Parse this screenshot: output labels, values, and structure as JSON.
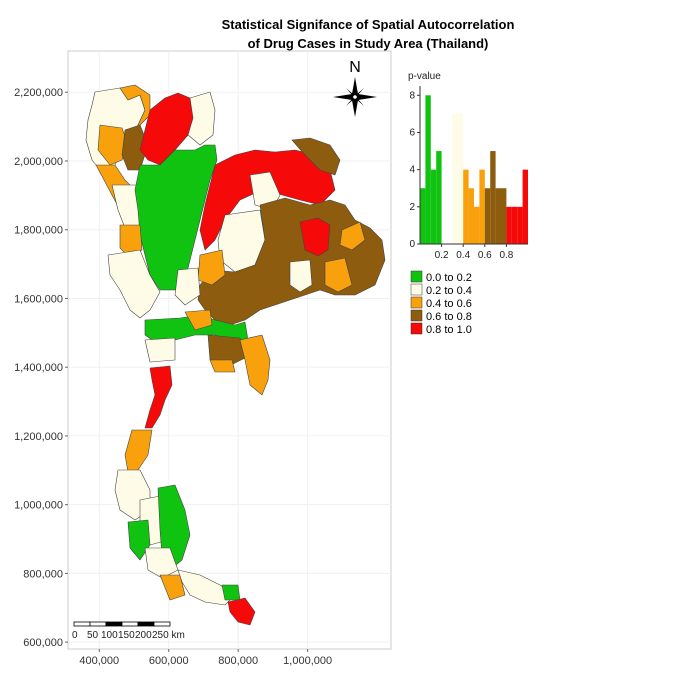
{
  "chart_data": {
    "type": "choropleth-map",
    "title_lines": [
      "Statistical Signifance of Spatial Autocorrelation",
      "of Drug Cases in Study Area (Thailand)"
    ],
    "x_ticks": [
      400000,
      600000,
      800000,
      1000000
    ],
    "x_tick_labels": [
      "400,000",
      "600,000",
      "800,000",
      "1,000,000"
    ],
    "y_ticks": [
      600000,
      800000,
      1000000,
      1200000,
      1400000,
      1600000,
      1800000,
      2000000,
      2200000
    ],
    "y_tick_labels": [
      "600,000",
      "800,000",
      "1,000,000",
      "1,200,000",
      "1,400,000",
      "1,600,000",
      "1,800,000",
      "2,000,000",
      "2,200,000"
    ],
    "xlim": [
      310000,
      1240000
    ],
    "ylim": [
      580000,
      2320000
    ],
    "grid": true,
    "north_arrow_label": "N",
    "scale_bar": {
      "labels": [
        "0",
        "50",
        "100",
        "150",
        "200",
        "250 km"
      ]
    },
    "legend": {
      "position": "right",
      "items": [
        {
          "label": "0.0 to 0.2",
          "color": "#11c311"
        },
        {
          "label": "0.2 to 0.4",
          "color": "#fefce6"
        },
        {
          "label": "0.4 to 0.6",
          "color": "#f8a10d"
        },
        {
          "label": "0.6 to 0.8",
          "color": "#8d5c0e"
        },
        {
          "label": "0.8 to 1.0",
          "color": "#f50909"
        }
      ]
    },
    "histogram": {
      "type": "bar",
      "ylabel": "p-value",
      "x_ticks": [
        0.2,
        0.4,
        0.6,
        0.8
      ],
      "x_tick_labels": [
        "0.2",
        "0.4",
        "0.6",
        "0.8"
      ],
      "y_ticks": [
        0,
        2,
        4,
        6,
        8
      ],
      "y_tick_labels": [
        "0",
        "2",
        "4",
        "6",
        "8"
      ],
      "xlim": [
        0.0,
        1.0
      ],
      "ylim": [
        0,
        8.5
      ],
      "bin_width": 0.05,
      "bins": [
        {
          "x0": 0.0,
          "count": 3,
          "color": "#11c311"
        },
        {
          "x0": 0.05,
          "count": 8,
          "color": "#11c311"
        },
        {
          "x0": 0.1,
          "count": 4,
          "color": "#11c311"
        },
        {
          "x0": 0.15,
          "count": 5,
          "color": "#11c311"
        },
        {
          "x0": 0.2,
          "count": 0,
          "color": "#fefce6"
        },
        {
          "x0": 0.25,
          "count": 0,
          "color": "#fefce6"
        },
        {
          "x0": 0.3,
          "count": 7,
          "color": "#fefce6"
        },
        {
          "x0": 0.35,
          "count": 7,
          "color": "#fefce6"
        },
        {
          "x0": 0.4,
          "count": 4,
          "color": "#f8a10d"
        },
        {
          "x0": 0.45,
          "count": 3,
          "color": "#f8a10d"
        },
        {
          "x0": 0.5,
          "count": 2,
          "color": "#f8a10d"
        },
        {
          "x0": 0.55,
          "count": 4,
          "color": "#f8a10d"
        },
        {
          "x0": 0.6,
          "count": 3,
          "color": "#8d5c0e"
        },
        {
          "x0": 0.65,
          "count": 5,
          "color": "#8d5c0e"
        },
        {
          "x0": 0.7,
          "count": 3,
          "color": "#8d5c0e"
        },
        {
          "x0": 0.75,
          "count": 3,
          "color": "#8d5c0e"
        },
        {
          "x0": 0.8,
          "count": 2,
          "color": "#f50909"
        },
        {
          "x0": 0.85,
          "count": 2,
          "color": "#f50909"
        },
        {
          "x0": 0.9,
          "count": 2,
          "color": "#f50909"
        },
        {
          "x0": 0.95,
          "count": 4,
          "color": "#f50909"
        }
      ]
    }
  }
}
